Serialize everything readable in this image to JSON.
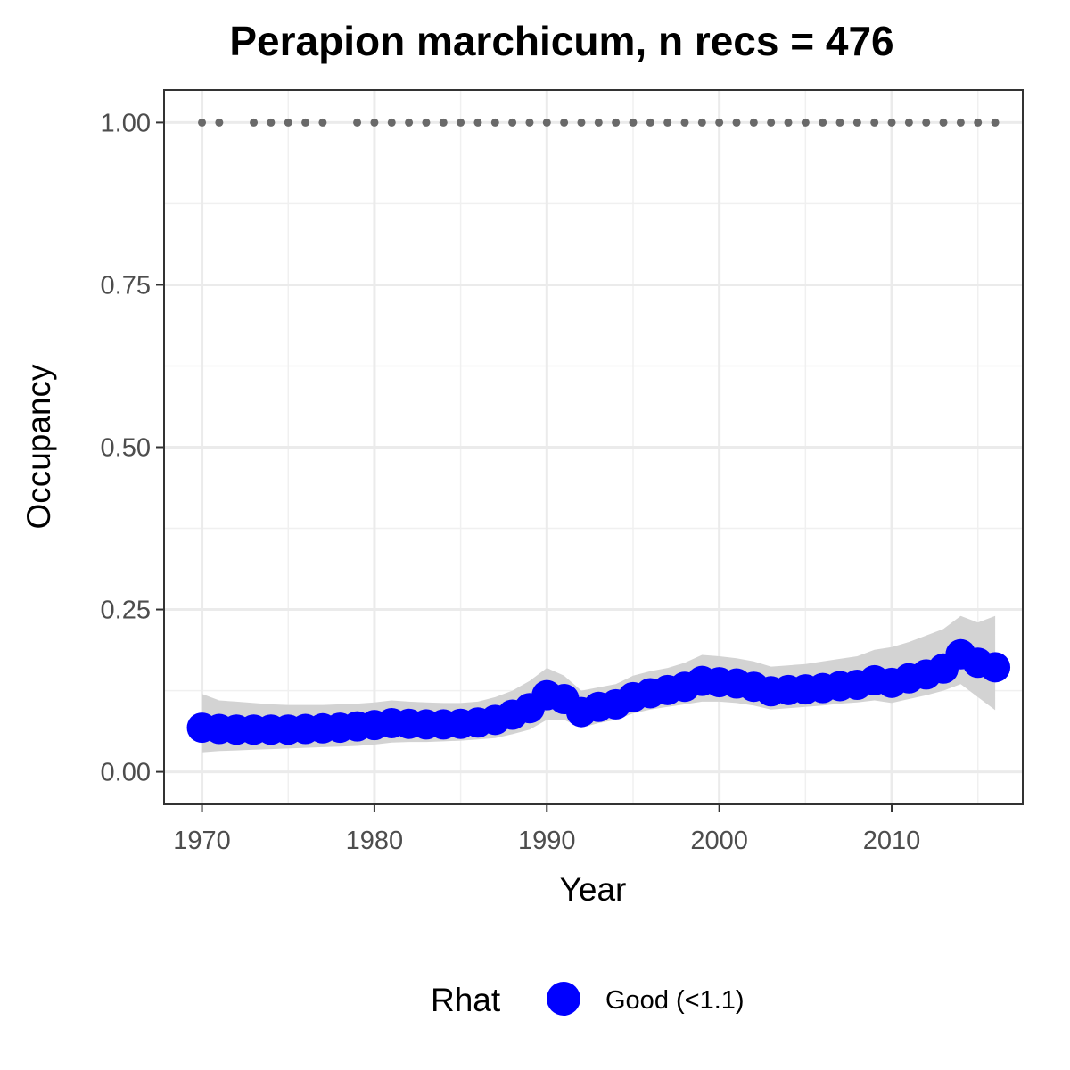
{
  "chart_data": {
    "type": "line",
    "title": "Perapion marchicum, n recs = 476",
    "xlabel": "Year",
    "ylabel": "Occupancy",
    "xlim": [
      1967.8,
      2017.6
    ],
    "ylim": [
      -0.05,
      1.05
    ],
    "x_ticks": [
      1970,
      1980,
      1990,
      2000,
      2010
    ],
    "x_tick_labels": [
      "1970",
      "1980",
      "1990",
      "2000",
      "2010"
    ],
    "y_ticks": [
      0,
      0.25,
      0.5,
      0.75,
      1
    ],
    "y_tick_labels": [
      "0.00",
      "0.25",
      "0.50",
      "0.75",
      "1.00"
    ],
    "grid": true,
    "series": [
      {
        "name": "Good (<1.1)",
        "x": [
          1970,
          1971,
          1972,
          1973,
          1974,
          1975,
          1976,
          1977,
          1978,
          1979,
          1980,
          1981,
          1982,
          1983,
          1984,
          1985,
          1986,
          1987,
          1988,
          1989,
          1990,
          1991,
          1992,
          1993,
          1994,
          1995,
          1996,
          1997,
          1998,
          1999,
          2000,
          2001,
          2002,
          2003,
          2004,
          2005,
          2006,
          2007,
          2008,
          2009,
          2010,
          2011,
          2012,
          2013,
          2014,
          2015,
          2016
        ],
        "y": [
          0.068,
          0.066,
          0.065,
          0.065,
          0.065,
          0.065,
          0.066,
          0.067,
          0.068,
          0.07,
          0.072,
          0.075,
          0.074,
          0.073,
          0.073,
          0.074,
          0.076,
          0.08,
          0.088,
          0.098,
          0.118,
          0.112,
          0.092,
          0.1,
          0.104,
          0.115,
          0.121,
          0.126,
          0.131,
          0.14,
          0.138,
          0.136,
          0.131,
          0.124,
          0.126,
          0.127,
          0.129,
          0.132,
          0.134,
          0.141,
          0.137,
          0.144,
          0.15,
          0.159,
          0.181,
          0.168,
          0.161
        ],
        "lower": [
          0.03,
          0.032,
          0.033,
          0.034,
          0.035,
          0.036,
          0.037,
          0.038,
          0.039,
          0.04,
          0.042,
          0.045,
          0.046,
          0.046,
          0.047,
          0.048,
          0.05,
          0.052,
          0.058,
          0.065,
          0.08,
          0.08,
          0.068,
          0.075,
          0.08,
          0.09,
          0.096,
          0.1,
          0.104,
          0.108,
          0.108,
          0.106,
          0.102,
          0.096,
          0.098,
          0.1,
          0.102,
          0.105,
          0.107,
          0.11,
          0.106,
          0.112,
          0.118,
          0.125,
          0.135,
          0.115,
          0.095
        ],
        "upper": [
          0.12,
          0.11,
          0.108,
          0.106,
          0.104,
          0.103,
          0.103,
          0.103,
          0.104,
          0.105,
          0.107,
          0.11,
          0.108,
          0.107,
          0.106,
          0.106,
          0.108,
          0.115,
          0.125,
          0.14,
          0.16,
          0.148,
          0.125,
          0.13,
          0.135,
          0.148,
          0.155,
          0.16,
          0.168,
          0.18,
          0.178,
          0.175,
          0.17,
          0.162,
          0.164,
          0.166,
          0.17,
          0.174,
          0.178,
          0.188,
          0.192,
          0.2,
          0.21,
          0.22,
          0.24,
          0.23,
          0.24
        ],
        "color": "#0000ff",
        "band_color": "#d3d3d3"
      }
    ],
    "record_years": [
      1970,
      1971,
      1973,
      1974,
      1975,
      1976,
      1977,
      1979,
      1980,
      1981,
      1982,
      1983,
      1984,
      1985,
      1986,
      1987,
      1988,
      1989,
      1990,
      1991,
      1992,
      1993,
      1994,
      1995,
      1996,
      1997,
      1998,
      1999,
      2000,
      2001,
      2002,
      2003,
      2004,
      2005,
      2006,
      2007,
      2008,
      2009,
      2010,
      2011,
      2012,
      2013,
      2014,
      2015,
      2016
    ],
    "record_value": 1,
    "record_color": "#696969",
    "legend": {
      "title": "Rhat",
      "placement": "bottom",
      "entries": [
        {
          "label": "Good (<1.1)",
          "color": "#0000ff"
        }
      ]
    }
  }
}
